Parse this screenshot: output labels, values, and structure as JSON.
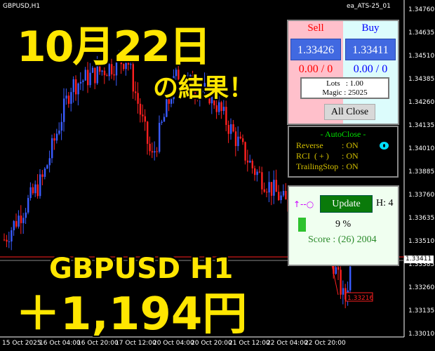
{
  "chart": {
    "symbol": "GBPUSD,H1",
    "ea_name": "ea_ATS-25_01",
    "bull_color": "#3a5cff",
    "bear_color": "#ff2020",
    "price_axis": [
      "1.34760",
      "1.34635",
      "1.34510",
      "1.34385",
      "1.34260",
      "1.34135",
      "1.34010",
      "1.33885",
      "1.33760",
      "1.33635",
      "1.33510",
      "1.33385",
      "1.33260",
      "1.33135",
      "1.33010"
    ],
    "time_axis": [
      "15 Oct 2025",
      "16 Oct 04:00",
      "16 Oct 20:00",
      "17 Oct 12:00",
      "20 Oct 04:00",
      "20 Oct 20:00",
      "21 Oct 12:00",
      "22 Oct 04:00",
      "22 Oct 20:00"
    ],
    "current_price": "1.33411",
    "trade_price_label": "1.33216"
  },
  "overlay": {
    "date": "10月22日",
    "result": "の結果！",
    "pair": "GBPUSD H1",
    "profit": "＋1,194円"
  },
  "panel": {
    "sell_label": "Sell",
    "buy_label": "Buy",
    "sell_price": "1.33426",
    "buy_price": "1.33411",
    "sell_pl": "0.00 / 0",
    "buy_pl": "0.00 / 0",
    "lots": "Lots   : 1.00",
    "magic": "Magic : 25025",
    "all_close": "All Close"
  },
  "autoclose": {
    "title": "- AutoClose -",
    "rows": [
      {
        "label": "Reverse",
        "value": ": ON"
      },
      {
        "label": "RCI  ( + )",
        "value": ": ON"
      },
      {
        "label": "TrailingStop",
        "value": ": ON"
      }
    ],
    "status_color": "#00e0ff"
  },
  "score_panel": {
    "update": "Update",
    "h": "H: 4",
    "percent": "9 %",
    "score": "Score : (26) 2004",
    "progress": 0.09
  }
}
